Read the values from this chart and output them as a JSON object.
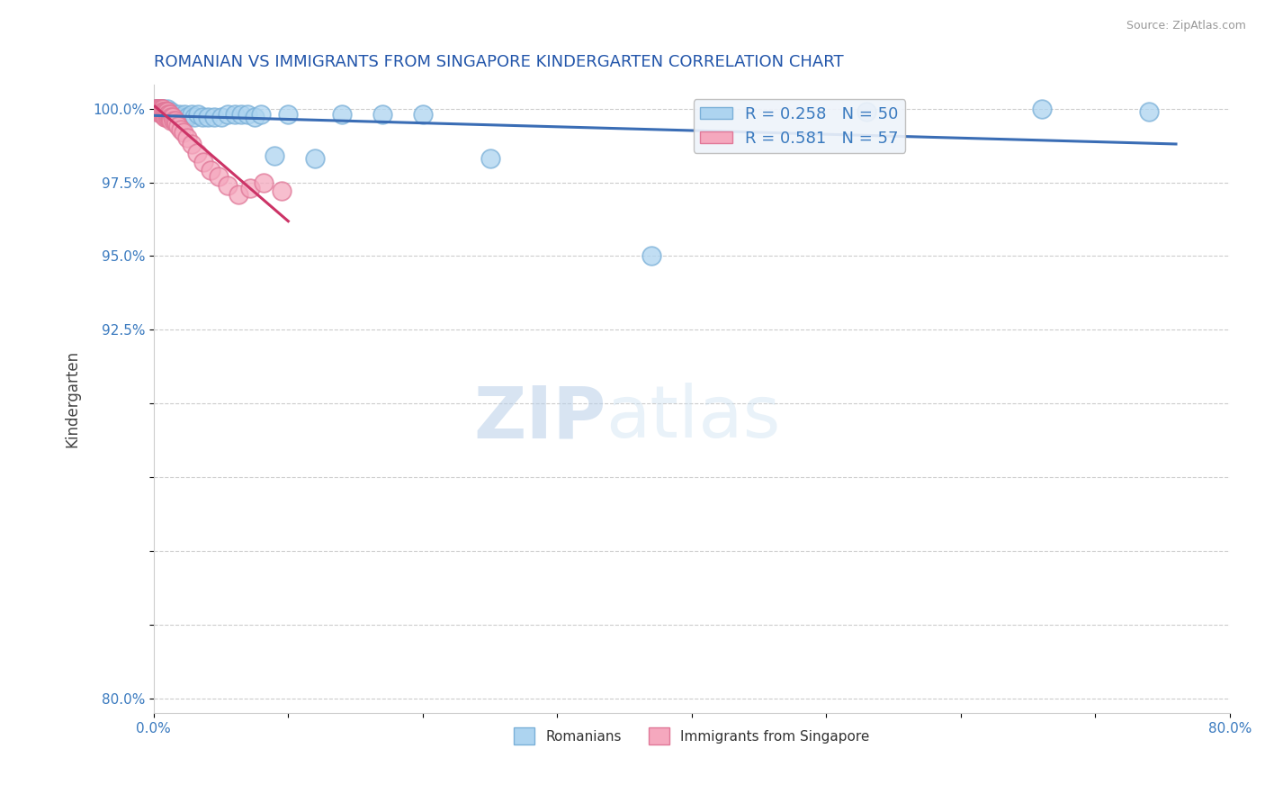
{
  "title": "ROMANIAN VS IMMIGRANTS FROM SINGAPORE KINDERGARTEN CORRELATION CHART",
  "source_text": "Source: ZipAtlas.com",
  "ylabel": "Kindergarten",
  "xlim": [
    0.0,
    0.8
  ],
  "ylim": [
    0.795,
    1.008
  ],
  "yticks": [
    0.8,
    0.825,
    0.85,
    0.875,
    0.9,
    0.925,
    0.95,
    0.975,
    1.0
  ],
  "ytick_labels": [
    "80.0%",
    "",
    "",
    "",
    "",
    "92.5%",
    "95.0%",
    "97.5%",
    "100.0%"
  ],
  "xticks": [
    0.0,
    0.1,
    0.2,
    0.3,
    0.4,
    0.5,
    0.6,
    0.7,
    0.8
  ],
  "xtick_labels": [
    "0.0%",
    "",
    "",
    "",
    "",
    "",
    "",
    "",
    "80.0%"
  ],
  "blue_R": 0.258,
  "blue_N": 50,
  "pink_R": 0.581,
  "pink_N": 57,
  "blue_color": "#add4f0",
  "pink_color": "#f5a8be",
  "blue_edge_color": "#7ab0d8",
  "pink_edge_color": "#e07898",
  "blue_line_color": "#3a6db5",
  "pink_line_color": "#cc3366",
  "legend_box_color": "#eef3fa",
  "blue_x": [
    0.001,
    0.002,
    0.003,
    0.003,
    0.004,
    0.004,
    0.005,
    0.005,
    0.006,
    0.006,
    0.007,
    0.007,
    0.008,
    0.008,
    0.009,
    0.01,
    0.01,
    0.011,
    0.012,
    0.013,
    0.015,
    0.017,
    0.019,
    0.021,
    0.023,
    0.025,
    0.028,
    0.03,
    0.033,
    0.036,
    0.04,
    0.045,
    0.05,
    0.055,
    0.06,
    0.065,
    0.07,
    0.075,
    0.08,
    0.09,
    0.1,
    0.12,
    0.14,
    0.17,
    0.2,
    0.25,
    0.37,
    0.53,
    0.66,
    0.74
  ],
  "blue_y": [
    1.0,
    1.0,
    0.999,
    1.0,
    1.0,
    0.999,
    1.0,
    0.999,
    1.0,
    0.999,
    0.999,
    1.0,
    0.999,
    0.998,
    0.999,
    0.998,
    1.0,
    0.999,
    0.998,
    0.999,
    0.998,
    0.997,
    0.998,
    0.997,
    0.998,
    0.997,
    0.998,
    0.997,
    0.998,
    0.997,
    0.997,
    0.997,
    0.997,
    0.998,
    0.998,
    0.998,
    0.998,
    0.997,
    0.998,
    0.984,
    0.998,
    0.983,
    0.998,
    0.998,
    0.998,
    0.983,
    0.95,
    0.999,
    1.0,
    0.999
  ],
  "pink_x": [
    0.001,
    0.002,
    0.002,
    0.003,
    0.003,
    0.003,
    0.004,
    0.004,
    0.004,
    0.005,
    0.005,
    0.005,
    0.005,
    0.006,
    0.006,
    0.006,
    0.006,
    0.007,
    0.007,
    0.007,
    0.007,
    0.008,
    0.008,
    0.008,
    0.008,
    0.009,
    0.009,
    0.009,
    0.01,
    0.01,
    0.01,
    0.01,
    0.011,
    0.011,
    0.011,
    0.012,
    0.012,
    0.013,
    0.013,
    0.014,
    0.015,
    0.016,
    0.017,
    0.018,
    0.02,
    0.022,
    0.025,
    0.028,
    0.032,
    0.037,
    0.042,
    0.048,
    0.055,
    0.063,
    0.072,
    0.082,
    0.095
  ],
  "pink_y": [
    1.0,
    1.0,
    0.999,
    1.0,
    0.999,
    1.0,
    1.0,
    0.999,
    1.0,
    1.0,
    0.999,
    1.0,
    0.999,
    1.0,
    0.999,
    1.0,
    0.998,
    1.0,
    0.999,
    0.998,
    0.999,
    0.999,
    0.998,
    0.999,
    0.997,
    0.999,
    0.998,
    0.997,
    0.999,
    0.998,
    0.997,
    0.999,
    0.998,
    0.997,
    0.998,
    0.997,
    0.998,
    0.997,
    0.996,
    0.997,
    0.996,
    0.996,
    0.995,
    0.994,
    0.993,
    0.992,
    0.99,
    0.988,
    0.985,
    0.982,
    0.979,
    0.977,
    0.974,
    0.971,
    0.973,
    0.975,
    0.972
  ],
  "watermark_zip": "ZIP",
  "watermark_atlas": "atlas",
  "title_color": "#2255aa",
  "axis_label_color": "#444444",
  "tick_label_color": "#3a7abf",
  "grid_color": "#cccccc",
  "grid_style": "--"
}
